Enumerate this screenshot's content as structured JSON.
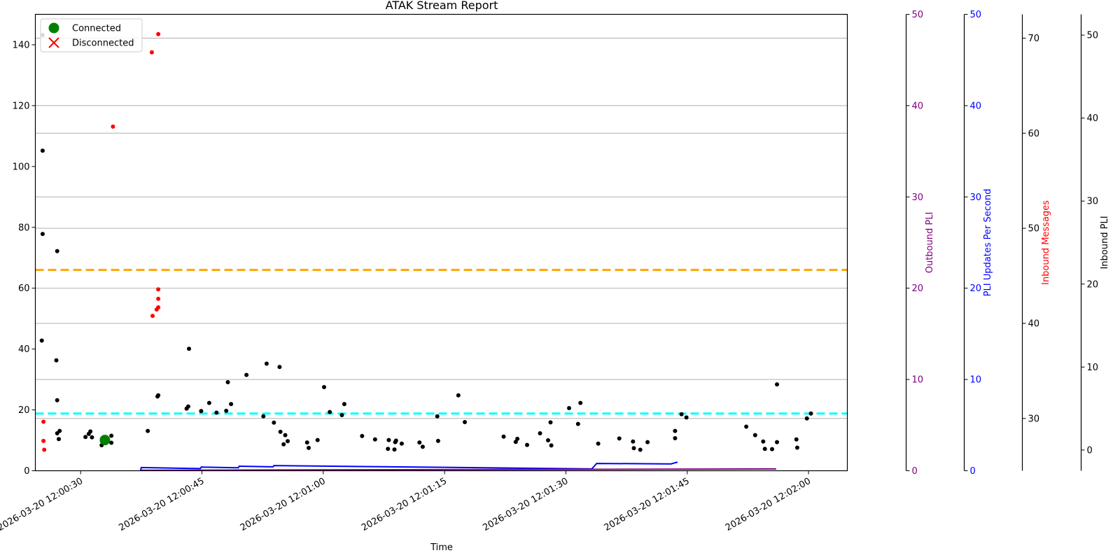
{
  "chart_data": {
    "type": "scatter",
    "title": "ATAK Stream Report",
    "xlabel": "Time",
    "x_date": "2026-03-20",
    "xlim": [
      "12:00:24.4",
      "12:02:04.8"
    ],
    "x_ticks": [
      "2026-03-20 12:00:30",
      "2026-03-20 12:00:45",
      "2026-03-20 12:01:00",
      "2026-03-20 12:01:15",
      "2026-03-20 12:01:30",
      "2026-03-20 12:01:45",
      "2026-03-20 12:02:00"
    ],
    "grid": "horizontal lines at left-axis positions of right-axis ticks",
    "legend": {
      "placement": "top-left",
      "entries": [
        "Connected",
        "Disconnected"
      ]
    },
    "colors": {
      "latency": "#000000",
      "red_points": "#ff0000",
      "connected": "#008000",
      "disconnected": "#ff0000",
      "orange_line": "#ffa500",
      "cyan_line": "#00ffff",
      "outbound_pli": "#800080",
      "pli_rate": "#0000ff",
      "inbound_messages": "#ff0000",
      "inbound_pli": "#000000"
    },
    "axes": {
      "left": {
        "ylim": [
          0,
          150
        ],
        "ticks": [
          "0",
          "20",
          "40",
          "60",
          "80",
          "100",
          "120",
          "140"
        ]
      },
      "outbound_pli": {
        "label": "Outbound PLI",
        "ylim": [
          0,
          50
        ],
        "ticks": [
          "0",
          "10",
          "20",
          "30",
          "40",
          "50"
        ]
      },
      "pli_rate": {
        "label": "PLI Updates Per Second",
        "ylim": [
          0,
          50
        ],
        "ticks": [
          "0",
          "10",
          "20",
          "30",
          "40",
          "50"
        ]
      },
      "inbound_messages": {
        "label": "Inbound Messages",
        "ylim": [
          24.5,
          72.5
        ],
        "ticks": [
          "30",
          "40",
          "50",
          "60",
          "70"
        ]
      },
      "inbound_pli": {
        "label": "Inbound PLI",
        "ylim": [
          -2.5,
          52.5
        ],
        "ticks": [
          "0",
          "10",
          "20",
          "30",
          "40",
          "50"
        ]
      }
    },
    "hlines": [
      {
        "color": "orange",
        "y": 66
      },
      {
        "color": "cyan",
        "y": 18.8
      }
    ],
    "series": [
      {
        "color": "black",
        "points": [
          [
            "12:00:25.3",
            143.2
          ],
          [
            "12:00:25.3",
            105.2
          ],
          [
            "12:00:25.3",
            77.8
          ],
          [
            "12:00:25.2",
            42.8
          ],
          [
            "12:00:27.1",
            72.2
          ],
          [
            "12:00:27.0",
            36.3
          ],
          [
            "12:00:27.1",
            23.2
          ],
          [
            "12:00:27.4",
            13.1
          ],
          [
            "12:00:27.1",
            12.3
          ],
          [
            "12:00:27.3",
            10.4
          ],
          [
            "12:00:30.6",
            11.1
          ],
          [
            "12:00:31.0",
            12.1
          ],
          [
            "12:00:31.2",
            12.9
          ],
          [
            "12:00:31.4",
            11.0
          ],
          [
            "12:00:32.6",
            8.4
          ],
          [
            "12:00:33.8",
            11.5
          ],
          [
            "12:00:33.8",
            9.2
          ],
          [
            "12:00:38.3",
            13.1
          ],
          [
            "12:00:39.5",
            24.4
          ],
          [
            "12:00:39.6",
            24.8
          ],
          [
            "12:00:43.1",
            20.4
          ],
          [
            "12:00:43.3",
            21.1
          ],
          [
            "12:00:43.4",
            40.1
          ],
          [
            "12:00:44.9",
            19.6
          ],
          [
            "12:00:45.9",
            22.3
          ],
          [
            "12:00:46.8",
            19.1
          ],
          [
            "12:00:48.0",
            19.7
          ],
          [
            "12:00:48.2",
            29.1
          ],
          [
            "12:00:48.6",
            21.9
          ],
          [
            "12:00:50.5",
            31.5
          ],
          [
            "12:00:52.6",
            17.9
          ],
          [
            "12:00:53.0",
            35.2
          ],
          [
            "12:00:53.9",
            15.8
          ],
          [
            "12:00:54.6",
            34.1
          ],
          [
            "12:00:54.7",
            12.8
          ],
          [
            "12:00:55.3",
            11.7
          ],
          [
            "12:00:55.1",
            8.7
          ],
          [
            "12:00:55.6",
            9.7
          ],
          [
            "12:00:58.0",
            9.3
          ],
          [
            "12:00:58.2",
            7.5
          ],
          [
            "12:01:00.1",
            27.5
          ],
          [
            "12:00:59.3",
            10.1
          ],
          [
            "12:01:00.8",
            19.3
          ],
          [
            "12:01:02.3",
            18.3
          ],
          [
            "12:01:02.6",
            21.9
          ],
          [
            "12:01:04.8",
            11.4
          ],
          [
            "12:01:06.4",
            10.3
          ],
          [
            "12:01:08.0",
            7.2
          ],
          [
            "12:01:08.1",
            10.1
          ],
          [
            "12:01:08.9",
            9.4
          ],
          [
            "12:01:08.8",
            7.0
          ],
          [
            "12:01:09.0",
            9.9
          ],
          [
            "12:01:09.7",
            8.9
          ],
          [
            "12:01:11.9",
            9.3
          ],
          [
            "12:01:12.3",
            7.9
          ],
          [
            "12:01:14.1",
            17.9
          ],
          [
            "12:01:14.2",
            9.8
          ],
          [
            "12:01:16.7",
            24.8
          ],
          [
            "12:01:17.5",
            16.0
          ],
          [
            "12:01:22.3",
            11.2
          ],
          [
            "12:01:23.8",
            9.5
          ],
          [
            "12:01:24.0",
            10.5
          ],
          [
            "12:01:25.2",
            8.5
          ],
          [
            "12:01:26.8",
            12.3
          ],
          [
            "12:01:28.1",
            15.9
          ],
          [
            "12:01:27.8",
            10.0
          ],
          [
            "12:01:28.2",
            8.3
          ],
          [
            "12:01:30.4",
            20.6
          ],
          [
            "12:01:31.5",
            15.4
          ],
          [
            "12:01:31.8",
            22.3
          ],
          [
            "12:01:34.0",
            8.9
          ],
          [
            "12:01:36.6",
            10.6
          ],
          [
            "12:01:38.3",
            9.6
          ],
          [
            "12:01:38.4",
            7.4
          ],
          [
            "12:01:39.2",
            6.9
          ],
          [
            "12:01:40.1",
            9.4
          ],
          [
            "12:01:43.5",
            13.1
          ],
          [
            "12:01:43.5",
            10.7
          ],
          [
            "12:01:44.3",
            18.6
          ],
          [
            "12:01:44.9",
            17.5
          ],
          [
            "12:01:52.3",
            14.5
          ],
          [
            "12:01:53.4",
            11.7
          ],
          [
            "12:01:54.4",
            9.6
          ],
          [
            "12:01:54.6",
            7.2
          ],
          [
            "12:01:55.5",
            7.1
          ],
          [
            "12:01:56.1",
            28.4
          ],
          [
            "12:01:56.1",
            9.4
          ],
          [
            "12:01:58.5",
            10.3
          ],
          [
            "12:01:58.6",
            7.6
          ],
          [
            "12:01:59.8",
            17.2
          ],
          [
            "12:02:00.3",
            18.8
          ]
        ]
      },
      {
        "color": "red",
        "points": [
          [
            "12:00:25.4",
            16.1
          ],
          [
            "12:00:25.4",
            9.8
          ],
          [
            "12:00:25.5",
            6.9
          ],
          [
            "12:00:34.0",
            113.1
          ],
          [
            "12:00:38.8",
            137.5
          ],
          [
            "12:00:39.6",
            143.5
          ],
          [
            "12:00:38.9",
            50.9
          ],
          [
            "12:00:39.4",
            53.0
          ],
          [
            "12:00:39.6",
            53.7
          ],
          [
            "12:00:39.6",
            56.5
          ],
          [
            "12:00:39.6",
            59.6
          ]
        ]
      },
      {
        "name": "Connected",
        "marker": "circle",
        "color": "green",
        "points": [
          [
            "12:00:33.0",
            10.1
          ]
        ]
      },
      {
        "color": "blue",
        "type": "line",
        "axis": "pli_rate",
        "points": [
          [
            "12:00:37.4",
            0.0
          ],
          [
            "12:00:37.5",
            0.35
          ],
          [
            "12:00:44.8",
            0.24
          ],
          [
            "12:00:44.9",
            0.4
          ],
          [
            "12:00:49.5",
            0.32
          ],
          [
            "12:00:49.6",
            0.5
          ],
          [
            "12:00:53.8",
            0.43
          ],
          [
            "12:00:53.9",
            0.57
          ],
          [
            "12:01:33.2",
            0.2
          ],
          [
            "12:01:33.5",
            0.5
          ],
          [
            "12:01:33.8",
            0.8
          ],
          [
            "12:01:43.0",
            0.75
          ],
          [
            "12:01:43.4",
            0.85
          ],
          [
            "12:01:43.8",
            0.95
          ]
        ]
      },
      {
        "color": "purple",
        "type": "line",
        "axis": "outbound_pli",
        "points": [
          [
            "12:00:37.5",
            0.05
          ],
          [
            "12:01:56.0",
            0.2
          ]
        ]
      }
    ]
  }
}
